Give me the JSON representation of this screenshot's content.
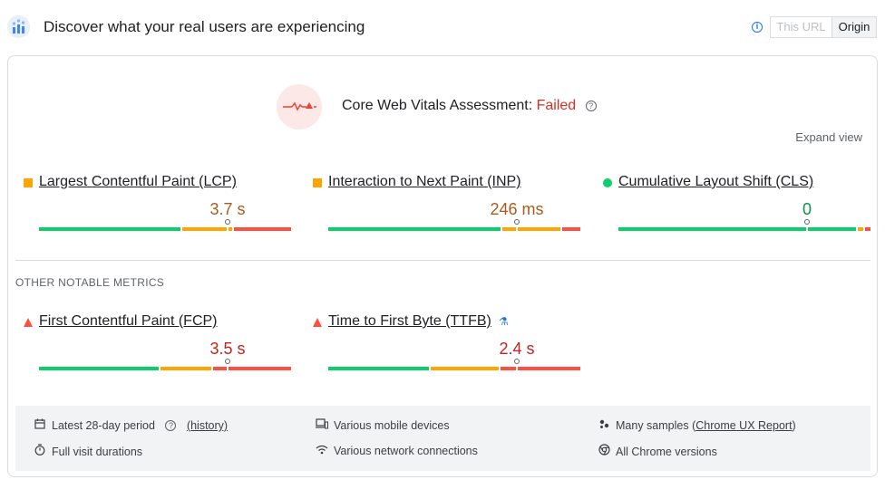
{
  "header": {
    "title": "Discover what your real users are experiencing",
    "toggle": {
      "this_url": "This URL",
      "origin": "Origin"
    }
  },
  "assessment": {
    "label": "Core Web Vitals Assessment:",
    "status": "Failed",
    "help": "?"
  },
  "expand_view": "Expand view",
  "core_metrics": [
    {
      "name": "Largest Contentful Paint (LCP)",
      "value": "3.7 s",
      "icon": "orange-square",
      "good_pct": 0.57,
      "ni_pct": 0.2,
      "poor_pct": 0.23,
      "marker_pct": 0.75,
      "value_color": "#a85c1f"
    },
    {
      "name": "Interaction to Next Paint (INP)",
      "value": "246 ms",
      "icon": "orange-square",
      "good_pct": 0.69,
      "ni_pct": 0.24,
      "poor_pct": 0.07,
      "marker_pct": 0.75,
      "value_color": "#a85c1f"
    },
    {
      "name": "Cumulative Layout Shift (CLS)",
      "value": "0",
      "icon": "green-circle",
      "good_pct": 0.94,
      "ni_pct": 0.04,
      "poor_pct": 0.02,
      "marker_pct": 0.75,
      "value_color": "#0d904f"
    }
  ],
  "other_label": "OTHER NOTABLE METRICS",
  "other_metrics": [
    {
      "name": "First Contentful Paint (FCP)",
      "value": "3.5 s",
      "icon": "red-triangle",
      "good_pct": 0.48,
      "ni_pct": 0.21,
      "poor_pct": 0.31,
      "marker_pct": 0.75,
      "value_color": "#c5221f"
    },
    {
      "name": "Time to First Byte (TTFB)",
      "value": "2.4 s",
      "icon": "red-triangle",
      "good_pct": 0.4,
      "ni_pct": 0.28,
      "poor_pct": 0.32,
      "marker_pct": 0.75,
      "value_color": "#c5221f"
    }
  ],
  "footer": {
    "period": "Latest 28-day period",
    "history": "(history)",
    "durations": "Full visit durations",
    "devices": "Various mobile devices",
    "network": "Various network connections",
    "samples": "Many samples",
    "crux": "Chrome UX Report",
    "versions": "All Chrome versions"
  },
  "colors": {
    "good": "#0cce6b",
    "needs_improvement": "#ffa400",
    "poor": "#ff4e42",
    "failed": "#d93025",
    "link": "#1a73e8"
  }
}
